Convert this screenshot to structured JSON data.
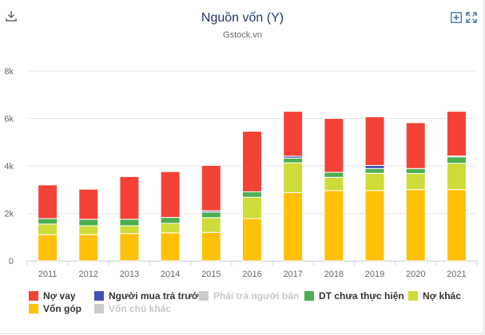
{
  "header": {
    "title": "Nguồn vốn (Y)",
    "subtitle": "Gstock.vn"
  },
  "toolbar": {
    "download_icon": "download-icon",
    "zoom_icon": "plus-box-icon",
    "fullscreen_icon": "fullscreen-icon"
  },
  "chart_data": {
    "type": "bar",
    "stacked": true,
    "categories": [
      "2011",
      "2012",
      "2013",
      "2014",
      "2015",
      "2016",
      "2017",
      "2018",
      "2019",
      "2020",
      "2021"
    ],
    "ylim": [
      0,
      8000
    ],
    "yticks": [
      0,
      2000,
      4000,
      6000,
      8000
    ],
    "ytick_labels": [
      "0",
      "2k",
      "4k",
      "6k",
      "8k"
    ],
    "grid": true,
    "legend_position": "bottom",
    "series": [
      {
        "name": "Vốn góp",
        "color": "#FFC107",
        "visible": true,
        "values": [
          1100,
          1100,
          1150,
          1180,
          1200,
          1780,
          2880,
          2960,
          2960,
          3000,
          3000
        ]
      },
      {
        "name": "Vốn chủ khác",
        "color": "#CCCCCC",
        "visible": false,
        "values": [
          0,
          0,
          0,
          0,
          0,
          0,
          0,
          0,
          0,
          0,
          0
        ]
      },
      {
        "name": "Nợ khác",
        "color": "#CDDC39",
        "visible": true,
        "values": [
          450,
          380,
          330,
          400,
          620,
          900,
          1250,
          560,
          730,
          680,
          1110
        ]
      },
      {
        "name": "DT chưa thực hiện",
        "color": "#4CAF50",
        "visible": true,
        "values": [
          230,
          270,
          270,
          250,
          230,
          230,
          200,
          210,
          200,
          210,
          270
        ]
      },
      {
        "name": "Phải trả người bán",
        "color": "#CCCCCC",
        "visible": false,
        "values": [
          0,
          0,
          0,
          0,
          0,
          0,
          0,
          0,
          0,
          0,
          0
        ]
      },
      {
        "name": "Người mua trả trước",
        "color": "#3F51B5",
        "visible": true,
        "values": [
          0,
          0,
          0,
          0,
          60,
          0,
          80,
          0,
          130,
          0,
          40
        ]
      },
      {
        "name": "Nợ vay",
        "color": "#F44336",
        "visible": true,
        "values": [
          1420,
          1270,
          1800,
          1930,
          1910,
          2550,
          1890,
          2270,
          2050,
          1930,
          1880
        ]
      }
    ]
  },
  "legend": [
    {
      "label": "Nợ vay",
      "color": "#F44336",
      "visible": true
    },
    {
      "label": "Người mua trả trước",
      "color": "#3F51B5",
      "visible": true
    },
    {
      "label": "Phải trả người bán",
      "color": "#CCCCCC",
      "visible": false
    },
    {
      "label": "DT chưa thực hiện",
      "color": "#4CAF50",
      "visible": true
    },
    {
      "label": "Nợ khác",
      "color": "#CDDC39",
      "visible": true
    },
    {
      "label": "Vốn góp",
      "color": "#FFC107",
      "visible": true
    },
    {
      "label": "Vốn chủ khác",
      "color": "#CCCCCC",
      "visible": false
    }
  ]
}
